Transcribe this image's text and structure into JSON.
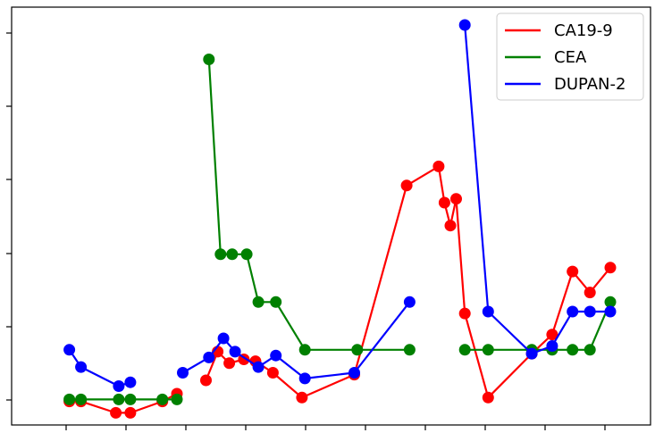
{
  "chart_data": {
    "type": "line",
    "title": "",
    "xlabel": "",
    "ylabel": "",
    "xlim": [
      0,
      100
    ],
    "ylim": [
      0,
      100
    ],
    "grid": false,
    "legend_position": "top-right",
    "series": [
      {
        "name": "CA19-9",
        "color": "#ff0000",
        "segments": [
          [
            [
              5,
              1.5
            ],
            [
              7,
              1.5
            ],
            [
              13,
              -1.5
            ],
            [
              15.5,
              -1.5
            ],
            [
              21,
              1.5
            ],
            [
              23.5,
              3.5
            ]
          ],
          [
            [
              28.5,
              7
            ],
            [
              30.5,
              14.5
            ],
            [
              32.5,
              11.5
            ],
            [
              35,
              12.5
            ],
            [
              37,
              12
            ],
            [
              40,
              9
            ],
            [
              45,
              2.5
            ],
            [
              54,
              8.5
            ],
            [
              63,
              58
            ],
            [
              68.5,
              63
            ],
            [
              69.5,
              53.5
            ],
            [
              70.5,
              47.5
            ],
            [
              71.5,
              54.5
            ],
            [
              73,
              24.5
            ],
            [
              77,
              2.5
            ],
            [
              84.5,
              14
            ],
            [
              88,
              19
            ],
            [
              91.5,
              35.5
            ],
            [
              94.5,
              30
            ],
            [
              98,
              36.5
            ]
          ]
        ]
      },
      {
        "name": "CEA",
        "color": "#008000",
        "segments": [
          [
            [
              5,
              2
            ],
            [
              7,
              2
            ],
            [
              13.5,
              2
            ],
            [
              15.5,
              2
            ],
            [
              21,
              2
            ],
            [
              23.5,
              2
            ]
          ],
          [
            [
              29,
              91
            ],
            [
              31,
              40
            ],
            [
              33,
              40
            ],
            [
              35.5,
              40
            ],
            [
              37.5,
              27.5
            ],
            [
              40.5,
              27.5
            ],
            [
              45.5,
              15
            ],
            [
              54.5,
              15
            ],
            [
              63.5,
              15
            ]
          ],
          [
            [
              73,
              15
            ],
            [
              77,
              15
            ],
            [
              84.5,
              15
            ],
            [
              88,
              15
            ],
            [
              91.5,
              15
            ],
            [
              94.5,
              15
            ],
            [
              98,
              27.5
            ]
          ]
        ]
      },
      {
        "name": "DUPAN-2",
        "color": "#0000ff",
        "segments": [
          [
            [
              5,
              15
            ],
            [
              7,
              10.5
            ],
            [
              13.5,
              5.5
            ],
            [
              15.5,
              6.5
            ]
          ],
          [
            [
              24.5,
              9
            ],
            [
              29,
              13
            ],
            [
              31.5,
              18
            ],
            [
              33.5,
              14.5
            ],
            [
              37.5,
              10.5
            ],
            [
              40.5,
              13.5
            ],
            [
              45.5,
              7.5
            ],
            [
              54,
              9
            ],
            [
              63.5,
              27.5
            ]
          ],
          [
            [
              73,
              100
            ],
            [
              77,
              25
            ],
            [
              84.5,
              14
            ],
            [
              88,
              16
            ],
            [
              91.5,
              25
            ],
            [
              94.5,
              25
            ],
            [
              98,
              25
            ]
          ]
        ]
      }
    ]
  }
}
